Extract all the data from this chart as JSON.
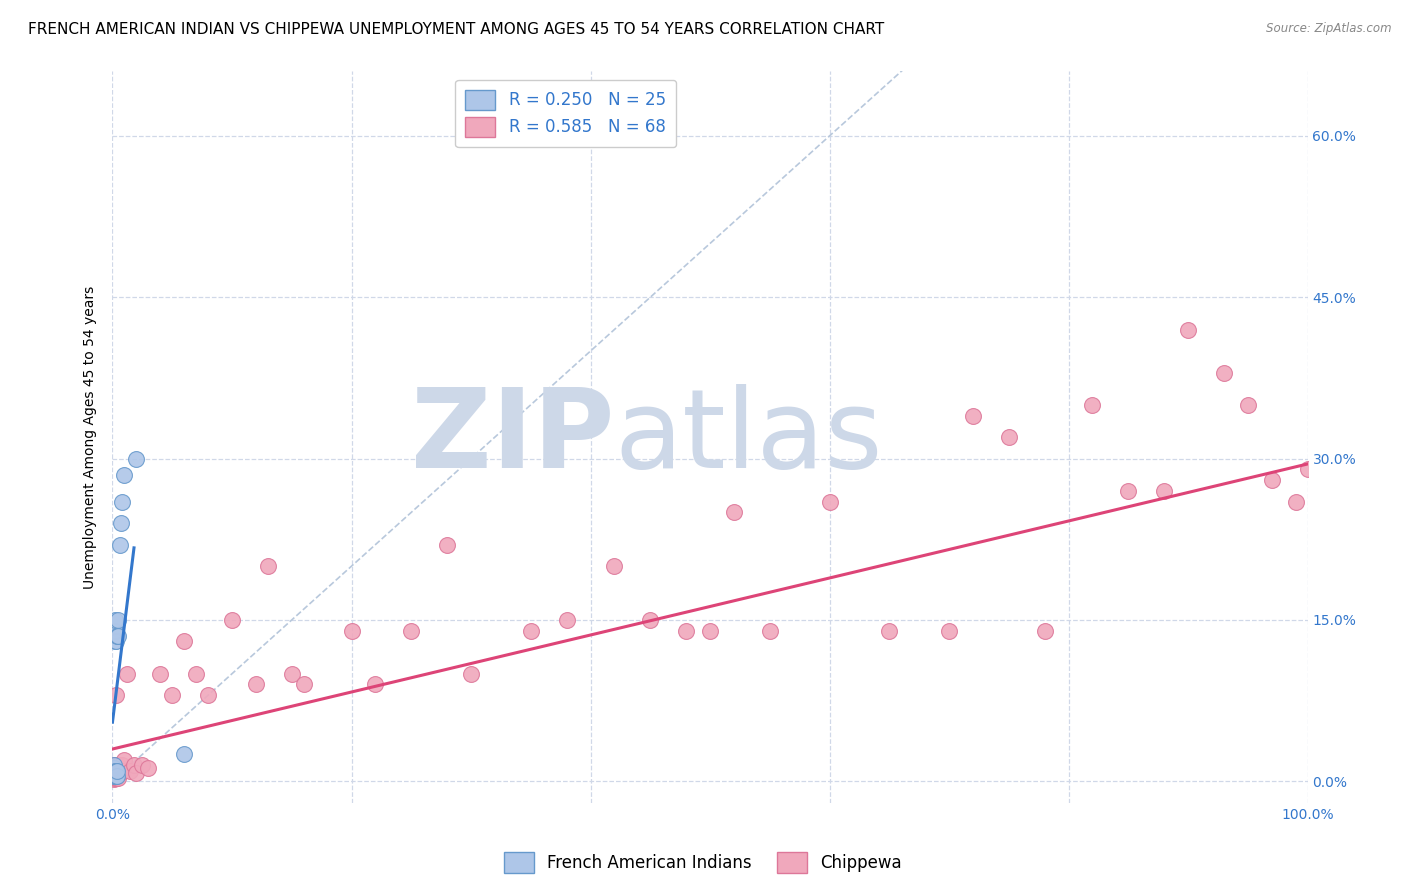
{
  "title": "FRENCH AMERICAN INDIAN VS CHIPPEWA UNEMPLOYMENT AMONG AGES 45 TO 54 YEARS CORRELATION CHART",
  "source": "Source: ZipAtlas.com",
  "ylabel": "Unemployment Among Ages 45 to 54 years",
  "ytick_vals": [
    0.0,
    0.15,
    0.3,
    0.45,
    0.6
  ],
  "ytick_labels": [
    "0.0%",
    "15.0%",
    "30.0%",
    "45.0%",
    "60.0%"
  ],
  "xlim": [
    0.0,
    1.0
  ],
  "ylim": [
    -0.02,
    0.66
  ],
  "watermark_zip": "ZIP",
  "watermark_atlas": "atlas",
  "watermark_color": "#cdd8e8",
  "french_color": "#aec6e8",
  "chippewa_color": "#f0a8bc",
  "french_edge": "#6699cc",
  "chippewa_edge": "#dd7799",
  "trendline_french_color": "#3377cc",
  "trendline_chippewa_color": "#dd4477",
  "diagonal_color": "#b8c8dc",
  "background_color": "#ffffff",
  "grid_color": "#d0d8e8",
  "title_fontsize": 11,
  "axis_label_fontsize": 10,
  "tick_fontsize": 10,
  "legend_fontsize": 12,
  "french_x": [
    0.001,
    0.001,
    0.001,
    0.001,
    0.001,
    0.002,
    0.002,
    0.002,
    0.002,
    0.002,
    0.002,
    0.003,
    0.003,
    0.003,
    0.004,
    0.004,
    0.004,
    0.005,
    0.005,
    0.006,
    0.007,
    0.008,
    0.01,
    0.02,
    0.06
  ],
  "french_y": [
    0.005,
    0.008,
    0.01,
    0.012,
    0.015,
    0.005,
    0.008,
    0.01,
    0.13,
    0.14,
    0.15,
    0.005,
    0.01,
    0.13,
    0.005,
    0.01,
    0.135,
    0.135,
    0.15,
    0.22,
    0.24,
    0.26,
    0.285,
    0.3,
    0.025
  ],
  "chippewa_x": [
    0.001,
    0.001,
    0.001,
    0.001,
    0.001,
    0.001,
    0.002,
    0.002,
    0.002,
    0.003,
    0.003,
    0.003,
    0.003,
    0.004,
    0.004,
    0.005,
    0.005,
    0.005,
    0.006,
    0.007,
    0.008,
    0.009,
    0.01,
    0.012,
    0.015,
    0.018,
    0.02,
    0.025,
    0.03,
    0.04,
    0.05,
    0.06,
    0.07,
    0.08,
    0.1,
    0.12,
    0.13,
    0.15,
    0.16,
    0.2,
    0.22,
    0.25,
    0.28,
    0.3,
    0.35,
    0.38,
    0.42,
    0.45,
    0.48,
    0.5,
    0.52,
    0.55,
    0.6,
    0.65,
    0.7,
    0.72,
    0.75,
    0.78,
    0.82,
    0.85,
    0.88,
    0.9,
    0.93,
    0.95,
    0.97,
    0.99,
    1.0
  ],
  "chippewa_y": [
    0.002,
    0.004,
    0.006,
    0.008,
    0.01,
    0.015,
    0.003,
    0.006,
    0.01,
    0.003,
    0.006,
    0.01,
    0.08,
    0.005,
    0.01,
    0.003,
    0.008,
    0.015,
    0.01,
    0.012,
    0.015,
    0.01,
    0.02,
    0.1,
    0.01,
    0.015,
    0.008,
    0.015,
    0.012,
    0.1,
    0.08,
    0.13,
    0.1,
    0.08,
    0.15,
    0.09,
    0.2,
    0.1,
    0.09,
    0.14,
    0.09,
    0.14,
    0.22,
    0.1,
    0.14,
    0.15,
    0.2,
    0.15,
    0.14,
    0.14,
    0.25,
    0.14,
    0.26,
    0.14,
    0.14,
    0.34,
    0.32,
    0.14,
    0.35,
    0.27,
    0.27,
    0.42,
    0.38,
    0.35,
    0.28,
    0.26,
    0.29
  ],
  "french_trend_x": [
    0.0,
    0.018
  ],
  "french_trend_y_intercept": 0.055,
  "french_trend_slope": 9.0,
  "chippewa_trend_x": [
    0.0,
    1.0
  ],
  "chippewa_trend_y_intercept": 0.03,
  "chippewa_trend_slope": 0.265
}
